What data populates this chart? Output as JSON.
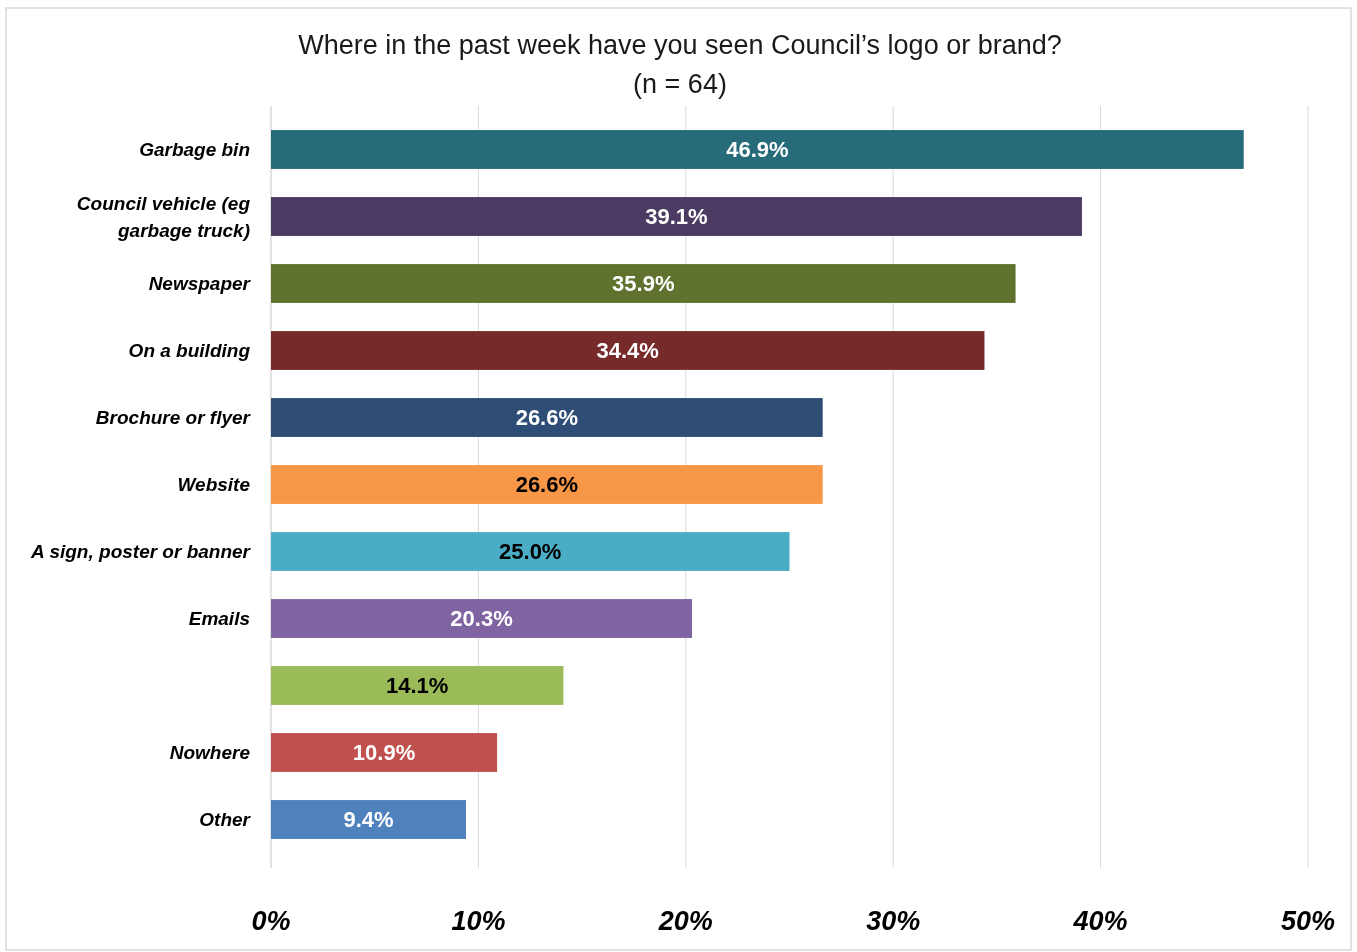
{
  "chart_data": {
    "type": "bar",
    "orientation": "horizontal",
    "title": "Where in the past week have you seen Council’s logo or brand?",
    "subtitle": "(n = 64)",
    "categories": [
      "Garbage bin",
      "Council vehicle (eg garbage truck)",
      "Newspaper",
      "On a building",
      "Brochure or flyer",
      "Website",
      "A sign, poster or banner",
      "Emails",
      null,
      "Nowhere",
      "Other"
    ],
    "values": [
      46.9,
      39.1,
      35.9,
      34.4,
      26.6,
      26.6,
      25.0,
      20.3,
      14.1,
      10.9,
      9.4
    ],
    "value_labels": [
      "46.9%",
      "39.1%",
      "35.9%",
      "34.4%",
      "26.6%",
      "26.6%",
      "25.0%",
      "20.3%",
      "14.1%",
      "10.9%",
      "9.4%"
    ],
    "colors": [
      "#276b7a",
      "#4b3a61",
      "#5f732f",
      "#772a2a",
      "#2e4d75",
      "#f79646",
      "#4bacc6",
      "#8064a2",
      "#9bbb59",
      "#c0504d",
      "#4f81bd"
    ],
    "xlim": [
      0,
      50
    ],
    "xticks": [
      {
        "value": 0,
        "label": "0%"
      },
      {
        "value": 10,
        "label": "10%"
      },
      {
        "value": 20,
        "label": "20%"
      },
      {
        "value": 30,
        "label": "30%"
      },
      {
        "value": 40,
        "label": "40%"
      },
      {
        "value": 50,
        "label": "50%"
      }
    ],
    "grid": "x"
  }
}
